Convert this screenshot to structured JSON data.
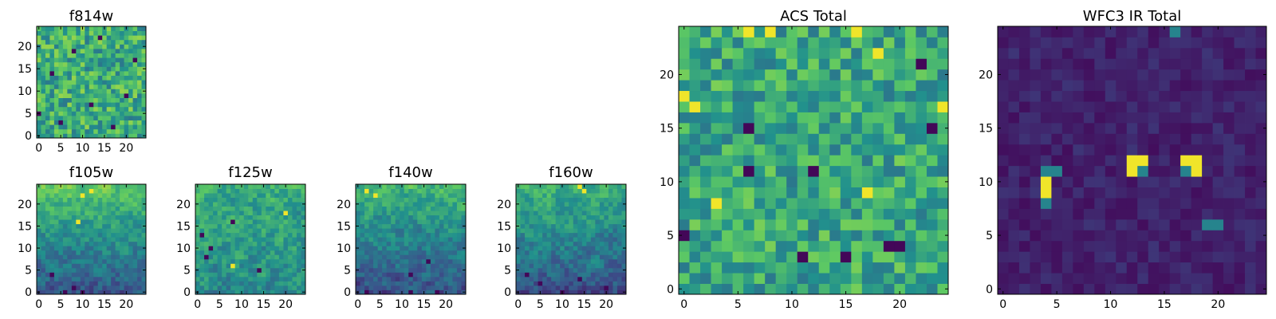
{
  "figure": {
    "colormap": "viridis",
    "colors": [
      "#440154",
      "#3b528b",
      "#21908d",
      "#5dc963",
      "#fde725"
    ]
  },
  "chart_data": [
    {
      "type": "heatmap",
      "id": "f814w",
      "title": "f814w",
      "shape": [
        25,
        25
      ],
      "xticks": [
        0,
        5,
        10,
        15,
        20
      ],
      "yticks": [
        0,
        5,
        10,
        15,
        20
      ],
      "xlim": [
        -0.5,
        24.5
      ],
      "ylim": [
        -0.5,
        24.5
      ],
      "value_range": [
        0,
        1
      ],
      "distribution": "mostly mid-to-high, scattered low pixels",
      "seed": 11,
      "mean": 0.62,
      "spread": 0.22,
      "smooth": 0,
      "hot_spots": [],
      "cold_spots": [
        [
          5,
          3
        ],
        [
          12,
          7
        ],
        [
          3,
          14
        ],
        [
          20,
          9
        ],
        [
          8,
          19
        ],
        [
          17,
          2
        ],
        [
          22,
          17
        ],
        [
          0,
          5
        ],
        [
          14,
          22
        ]
      ]
    },
    {
      "type": "heatmap",
      "id": "f105w",
      "title": "f105w",
      "shape": [
        25,
        25
      ],
      "xticks": [
        0,
        5,
        10,
        15,
        20
      ],
      "yticks": [
        0,
        5,
        10,
        15,
        20
      ],
      "xlim": [
        -0.5,
        24.5
      ],
      "ylim": [
        -0.5,
        24.5
      ],
      "value_range": [
        0,
        1
      ],
      "distribution": "bright toward top, dark near bottom",
      "seed": 23,
      "mean": 0.5,
      "spread": 0.2,
      "smooth": 1,
      "gradient": 0.45,
      "hot_spots": [
        [
          10,
          22
        ],
        [
          12,
          23
        ],
        [
          9,
          16
        ]
      ],
      "cold_spots": [
        [
          8,
          1
        ],
        [
          10,
          0
        ],
        [
          6,
          0
        ],
        [
          3,
          4
        ]
      ]
    },
    {
      "type": "heatmap",
      "id": "f125w",
      "title": "f125w",
      "shape": [
        25,
        25
      ],
      "xticks": [
        0,
        5,
        10,
        15,
        20
      ],
      "yticks": [
        0,
        5,
        10,
        15,
        20
      ],
      "xlim": [
        -0.5,
        24.5
      ],
      "ylim": [
        -0.5,
        24.5
      ],
      "value_range": [
        0,
        1
      ],
      "distribution": "moderate, mixed",
      "seed": 37,
      "mean": 0.55,
      "spread": 0.22,
      "smooth": 1,
      "gradient": 0.15,
      "hot_spots": [
        [
          8,
          6
        ],
        [
          20,
          18
        ]
      ],
      "cold_spots": [
        [
          2,
          8
        ],
        [
          3,
          10
        ],
        [
          8,
          16
        ],
        [
          14,
          5
        ],
        [
          1,
          13
        ]
      ]
    },
    {
      "type": "heatmap",
      "id": "f140w",
      "title": "f140w",
      "shape": [
        25,
        25
      ],
      "xticks": [
        0,
        5,
        10,
        15,
        20
      ],
      "yticks": [
        0,
        5,
        10,
        15,
        20
      ],
      "xlim": [
        -0.5,
        24.5
      ],
      "ylim": [
        -0.5,
        24.5
      ],
      "value_range": [
        0,
        1
      ],
      "distribution": "bright top rows, darker lower half",
      "seed": 41,
      "mean": 0.45,
      "spread": 0.2,
      "smooth": 1,
      "gradient": 0.4,
      "hot_spots": [
        [
          2,
          23
        ],
        [
          4,
          22
        ]
      ],
      "cold_spots": [
        [
          12,
          4
        ],
        [
          16,
          7
        ],
        [
          18,
          0
        ],
        [
          2,
          0
        ],
        [
          12,
          0
        ]
      ]
    },
    {
      "type": "heatmap",
      "id": "f160w",
      "title": "f160w",
      "shape": [
        25,
        25
      ],
      "xticks": [
        0,
        5,
        10,
        15,
        20
      ],
      "yticks": [
        0,
        5,
        10,
        15,
        20
      ],
      "xlim": [
        -0.5,
        24.5
      ],
      "ylim": [
        -0.5,
        24.5
      ],
      "value_range": [
        0,
        1
      ],
      "distribution": "bright top rows, darker lower half",
      "seed": 53,
      "mean": 0.45,
      "spread": 0.2,
      "smooth": 1,
      "gradient": 0.4,
      "hot_spots": [
        [
          14,
          24
        ],
        [
          15,
          23
        ]
      ],
      "cold_spots": [
        [
          10,
          0
        ],
        [
          20,
          1
        ],
        [
          2,
          4
        ],
        [
          14,
          3
        ],
        [
          5,
          2
        ]
      ]
    },
    {
      "type": "heatmap",
      "id": "acs_total",
      "title": "ACS Total",
      "shape": [
        25,
        25
      ],
      "xticks": [
        0,
        5,
        10,
        15,
        20
      ],
      "yticks": [
        0,
        5,
        10,
        15,
        20
      ],
      "xlim": [
        -0.5,
        24.5
      ],
      "ylim": [
        -0.5,
        24.5
      ],
      "value_range": [
        0,
        1
      ],
      "distribution": "mostly green/yellow with scattered dark pixels",
      "seed": 67,
      "mean": 0.6,
      "spread": 0.2,
      "smooth": 0,
      "hot_spots": [
        [
          6,
          24
        ],
        [
          8,
          24
        ],
        [
          16,
          24
        ],
        [
          24,
          17
        ],
        [
          0,
          18
        ],
        [
          1,
          17
        ],
        [
          3,
          8
        ],
        [
          17,
          9
        ],
        [
          18,
          22
        ]
      ],
      "cold_spots": [
        [
          6,
          15
        ],
        [
          23,
          15
        ],
        [
          22,
          21
        ],
        [
          6,
          11
        ],
        [
          11,
          3
        ],
        [
          15,
          3
        ],
        [
          20,
          4
        ],
        [
          12,
          11
        ],
        [
          0,
          5
        ],
        [
          19,
          4
        ]
      ]
    },
    {
      "type": "heatmap",
      "id": "wfc3_ir_total",
      "title": "WFC3 IR Total",
      "shape": [
        25,
        25
      ],
      "xticks": [
        0,
        5,
        10,
        15,
        20
      ],
      "yticks": [
        0,
        5,
        10,
        15,
        20
      ],
      "xlim": [
        -0.5,
        24.5
      ],
      "ylim": [
        -0.5,
        24.5
      ],
      "value_range": [
        0,
        1
      ],
      "distribution": "mostly dark purple background, three bright compact sources",
      "seed": 79,
      "mean": 0.1,
      "spread": 0.06,
      "smooth": 0,
      "hot_spots": [
        [
          4,
          9
        ],
        [
          4,
          10
        ],
        [
          12,
          11
        ],
        [
          12,
          12
        ],
        [
          13,
          12
        ],
        [
          17,
          12
        ],
        [
          18,
          12
        ],
        [
          18,
          11
        ]
      ],
      "warm_spots": [
        [
          4,
          11
        ],
        [
          5,
          11
        ],
        [
          4,
          8
        ],
        [
          13,
          11
        ],
        [
          17,
          11
        ],
        [
          16,
          24
        ],
        [
          19,
          6
        ],
        [
          20,
          6
        ]
      ],
      "cold_spots": []
    }
  ]
}
